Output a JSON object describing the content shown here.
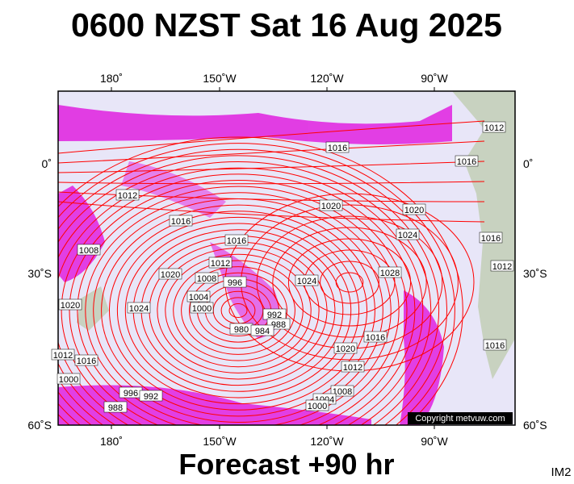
{
  "header": {
    "title": "0600 NZST Sat 16 Aug 2025"
  },
  "map": {
    "lon_labels": [
      "180˚",
      "150˚W",
      "120˚W",
      "90˚W"
    ],
    "lat_labels": [
      "0˚",
      "30˚S",
      "60˚S"
    ],
    "isobar_labels": [
      "1016",
      "1012",
      "1020",
      "1020",
      "1016",
      "1016",
      "1024",
      "1012",
      "1008",
      "996",
      "1028",
      "1024",
      "1020",
      "1004",
      "1000",
      "1024",
      "1020",
      "992",
      "988",
      "980",
      "984",
      "1016",
      "1020",
      "1012",
      "1016",
      "1012",
      "1008",
      "1004",
      "1000",
      "1000",
      "996",
      "992",
      "988",
      "1016",
      "1012",
      "1016",
      "1012",
      "1008",
      "1016"
    ],
    "copyright": "Copyright metvuw.com"
  },
  "footer": {
    "forecast": "Forecast +90 hr",
    "code": "IM2"
  }
}
